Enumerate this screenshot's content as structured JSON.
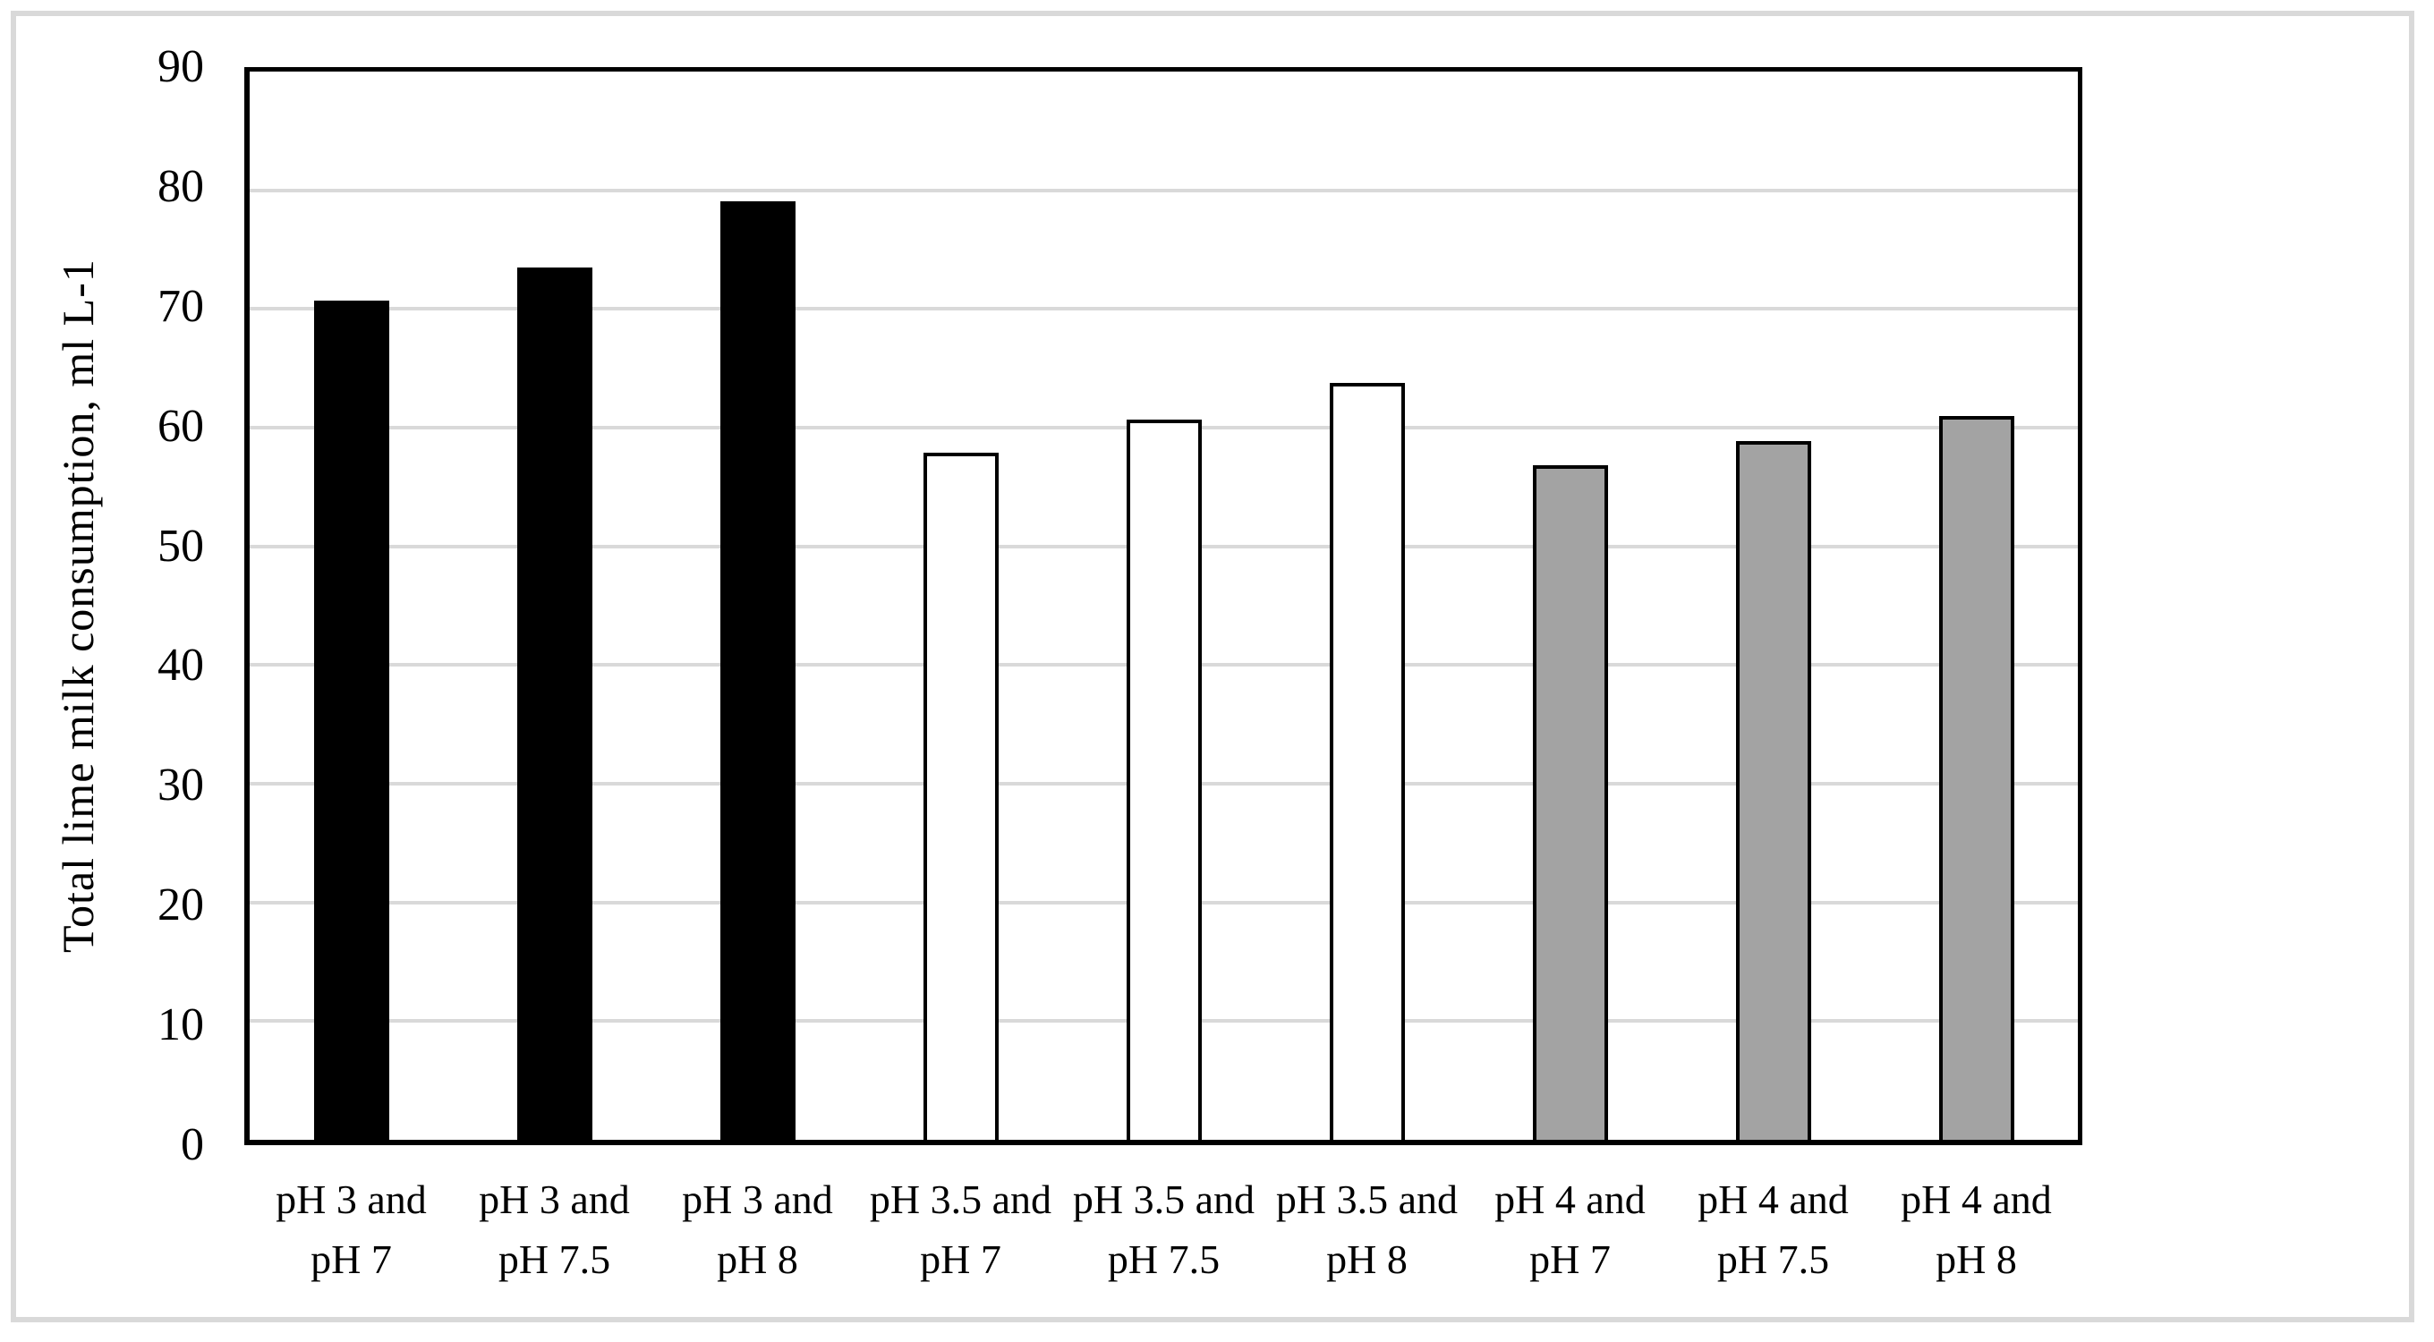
{
  "chart_data": {
    "type": "bar",
    "title": "",
    "xlabel": "",
    "ylabel": "Total lime milk consumption, ml L-1",
    "ylim": [
      0,
      90
    ],
    "ytick_step": 10,
    "grid": true,
    "legend_position": "none",
    "categories": [
      "pH 3 and pH 7",
      "pH 3 and pH 7.5",
      "pH 3 and pH 8",
      "pH 3.5 and pH 7",
      "pH 3.5 and pH 7.5",
      "pH 3.5 and pH 8",
      "pH 4 and pH 7",
      "pH 4 and pH 7.5",
      "pH 4 and pH 8"
    ],
    "values": [
      70.7,
      73.5,
      79.1,
      57.9,
      60.7,
      63.8,
      56.8,
      58.9,
      61.0
    ],
    "bars": [
      {
        "label_line1": "pH 3 and",
        "label_line2": "pH 7",
        "value": 70.7,
        "fill": "#000000"
      },
      {
        "label_line1": "pH 3 and",
        "label_line2": "pH 7.5",
        "value": 73.5,
        "fill": "#000000"
      },
      {
        "label_line1": "pH 3 and",
        "label_line2": "pH 8",
        "value": 79.1,
        "fill": "#000000"
      },
      {
        "label_line1": "pH 3.5 and",
        "label_line2": "pH 7",
        "value": 57.9,
        "fill": "#ffffff"
      },
      {
        "label_line1": "pH 3.5 and",
        "label_line2": "pH 7.5",
        "value": 60.7,
        "fill": "#ffffff"
      },
      {
        "label_line1": "pH 3.5 and",
        "label_line2": "pH 8",
        "value": 63.8,
        "fill": "#ffffff"
      },
      {
        "label_line1": "pH 4 and",
        "label_line2": "pH 7",
        "value": 56.8,
        "fill": "#a3a3a3"
      },
      {
        "label_line1": "pH 4 and",
        "label_line2": "pH 7.5",
        "value": 58.9,
        "fill": "#a3a3a3"
      },
      {
        "label_line1": "pH 4 and",
        "label_line2": "pH 8",
        "value": 61.0,
        "fill": "#a3a3a3"
      }
    ],
    "colors": {
      "bar_group_black": "#000000",
      "bar_group_white": "#ffffff",
      "bar_group_gray": "#a3a3a3",
      "bar_border": "#000000",
      "gridline": "#d9d9d9",
      "axis_box": "#000000",
      "figure_border": "#d9d9d9",
      "background": "#ffffff"
    }
  }
}
